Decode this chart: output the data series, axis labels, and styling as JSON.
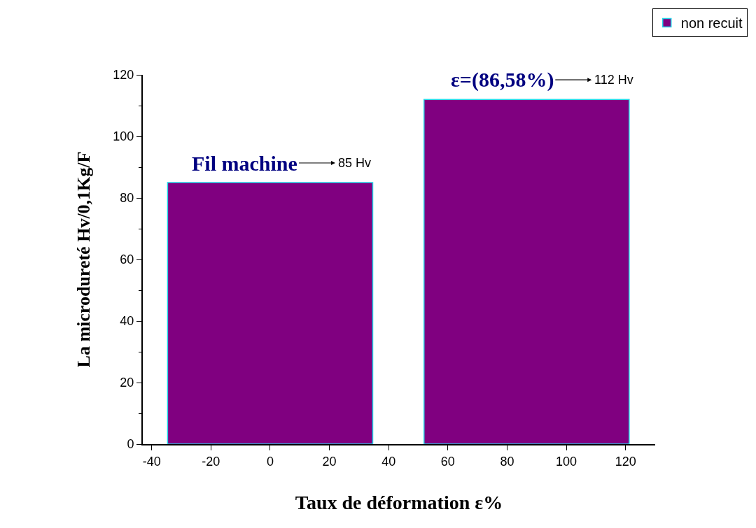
{
  "chart_data": {
    "type": "bar",
    "xlabel": "Taux de déformation ε%",
    "ylabel": "La microdureté Hv/0,1Kg/F",
    "x": [
      0,
      86.58
    ],
    "series": [
      {
        "name": "non recuit",
        "color": "#800080",
        "values": [
          85,
          112
        ],
        "value_labels": [
          "85 Hv",
          "112 Hv"
        ]
      }
    ],
    "annotations": [
      {
        "text": "Fil machine",
        "x": 0,
        "y": 85
      },
      {
        "text": "ε=(86,58%)",
        "x": 86.58,
        "y": 112
      }
    ],
    "xlim": [
      -43,
      130
    ],
    "xticks": [
      -40,
      -20,
      0,
      20,
      40,
      60,
      80,
      100,
      120
    ],
    "ylim": [
      0,
      120
    ],
    "yticks": [
      0,
      20,
      40,
      60,
      80,
      100,
      120
    ],
    "legend": "top right"
  }
}
